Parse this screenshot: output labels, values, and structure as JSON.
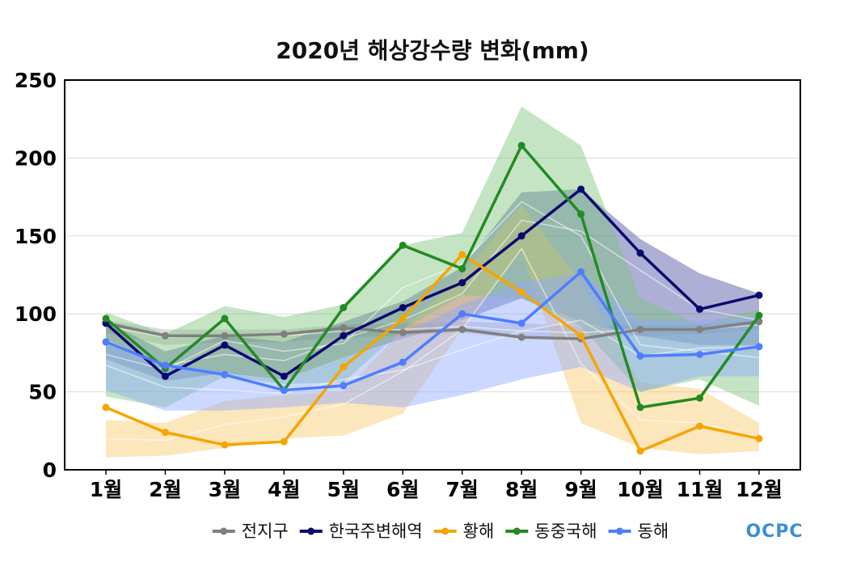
{
  "chart_data": {
    "type": "line",
    "title": "2020년 해상강수량 변화(mm)",
    "xlabel": "",
    "ylabel": "",
    "categories": [
      "1월",
      "2월",
      "3월",
      "4월",
      "5월",
      "6월",
      "7월",
      "8월",
      "9월",
      "10월",
      "11월",
      "12월"
    ],
    "ylim": [
      0,
      250
    ],
    "yticks": [
      0,
      50,
      100,
      150,
      200,
      250
    ],
    "grid": true,
    "legend_position": "bottom",
    "series": [
      {
        "name": "전지구",
        "color": "#808080",
        "values": [
          94,
          86,
          86,
          87,
          91,
          88,
          90,
          85,
          84,
          90,
          90,
          95
        ],
        "band": {
          "color": "#b0b0b0",
          "upper": [
            96,
            90,
            90,
            90,
            93,
            94,
            95,
            94,
            92,
            93,
            93,
            96
          ],
          "lower": [
            88,
            80,
            82,
            82,
            85,
            86,
            88,
            84,
            84,
            86,
            87,
            90
          ],
          "mean": [
            92,
            85,
            86,
            86,
            89,
            90,
            92,
            89,
            88,
            90,
            90,
            93
          ]
        }
      },
      {
        "name": "한국주변해역",
        "color": "#0a0a6e",
        "values": [
          94,
          60,
          80,
          60,
          86,
          104,
          120,
          150,
          180,
          139,
          103,
          112
        ],
        "band": {
          "color": "#4a50a0",
          "upper": [
            95,
            76,
            86,
            82,
            95,
            108,
            130,
            178,
            180,
            148,
            126,
            113
          ],
          "lower": [
            71,
            57,
            62,
            58,
            72,
            84,
            96,
            110,
            95,
            86,
            80,
            80
          ],
          "mean": [
            83,
            67,
            74,
            70,
            84,
            96,
            113,
            160,
            153,
            128,
            103,
            96
          ]
        }
      },
      {
        "name": "황해",
        "color": "#f5a500",
        "values": [
          40,
          24,
          16,
          18,
          66,
          97,
          138,
          114,
          86,
          12,
          28,
          20
        ],
        "band": {
          "color": "#f9c86a",
          "upper": [
            32,
            30,
            44,
            48,
            50,
            90,
            125,
            170,
            120,
            56,
            52,
            30
          ],
          "lower": [
            8,
            9,
            14,
            20,
            22,
            36,
            90,
            140,
            30,
            14,
            10,
            12
          ],
          "mean": [
            20,
            19,
            29,
            34,
            42,
            63,
            90,
            142,
            68,
            32,
            30,
            21
          ]
        }
      },
      {
        "name": "동중국해",
        "color": "#228b22",
        "values": [
          97,
          65,
          97,
          51,
          104,
          144,
          129,
          208,
          164,
          40,
          46,
          99
        ],
        "band": {
          "color": "#7cc47c",
          "upper": [
            101,
            87,
            105,
            98,
            106,
            144,
            152,
            233,
            208,
            110,
            93,
            103
          ],
          "lower": [
            47,
            40,
            60,
            55,
            56,
            90,
            112,
            110,
            92,
            50,
            58,
            41
          ],
          "mean": [
            74,
            64,
            83,
            76,
            81,
            117,
            132,
            172,
            150,
            80,
            76,
            72
          ]
        }
      },
      {
        "name": "동해",
        "color": "#4f7dff",
        "values": [
          82,
          67,
          61,
          51,
          54,
          69,
          100,
          94,
          127,
          73,
          74,
          79
        ],
        "band": {
          "color": "#8fa8ff",
          "upper": [
            82,
            68,
            63,
            58,
            72,
            87,
            106,
            120,
            126,
            96,
            96,
            98
          ],
          "lower": [
            51,
            38,
            38,
            40,
            43,
            40,
            48,
            58,
            66,
            50,
            60,
            60
          ],
          "mean": [
            67,
            53,
            51,
            49,
            58,
            64,
            77,
            89,
            96,
            73,
            78,
            79
          ]
        }
      }
    ]
  },
  "legend": {
    "items": [
      {
        "label": "전지구",
        "color": "#808080"
      },
      {
        "label": "한국주변해역",
        "color": "#0a0a6e"
      },
      {
        "label": "황해",
        "color": "#f5a500"
      },
      {
        "label": "동중국해",
        "color": "#228b22"
      },
      {
        "label": "동해",
        "color": "#4f7dff"
      }
    ]
  },
  "logo": {
    "text": "OCPC",
    "color": "#3b8fd6"
  }
}
